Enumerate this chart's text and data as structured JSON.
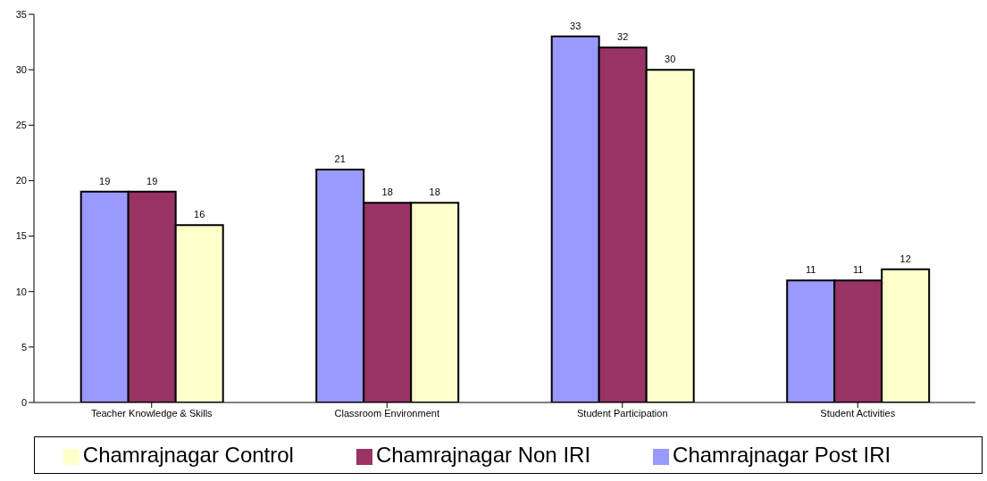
{
  "chart_data": {
    "type": "bar",
    "categories": [
      "Teacher Knowledge & Skills",
      "Classroom Environment",
      "Student Participation",
      "Student Activities"
    ],
    "series": [
      {
        "name": "Chamrajnagar Post IRI",
        "color": "#9999ff",
        "values": [
          19,
          21,
          33,
          11
        ]
      },
      {
        "name": "Chamrajnagar Non IRI",
        "color": "#993366",
        "values": [
          19,
          18,
          32,
          11
        ]
      },
      {
        "name": "Chamrajnagar Control",
        "color": "#ffffcc",
        "values": [
          16,
          18,
          30,
          12
        ]
      }
    ],
    "ylim": [
      0,
      35
    ],
    "yticks": [
      0,
      5,
      10,
      15,
      20,
      25,
      30,
      35
    ],
    "grid": false,
    "legend": "bottom",
    "data_labels": true
  }
}
